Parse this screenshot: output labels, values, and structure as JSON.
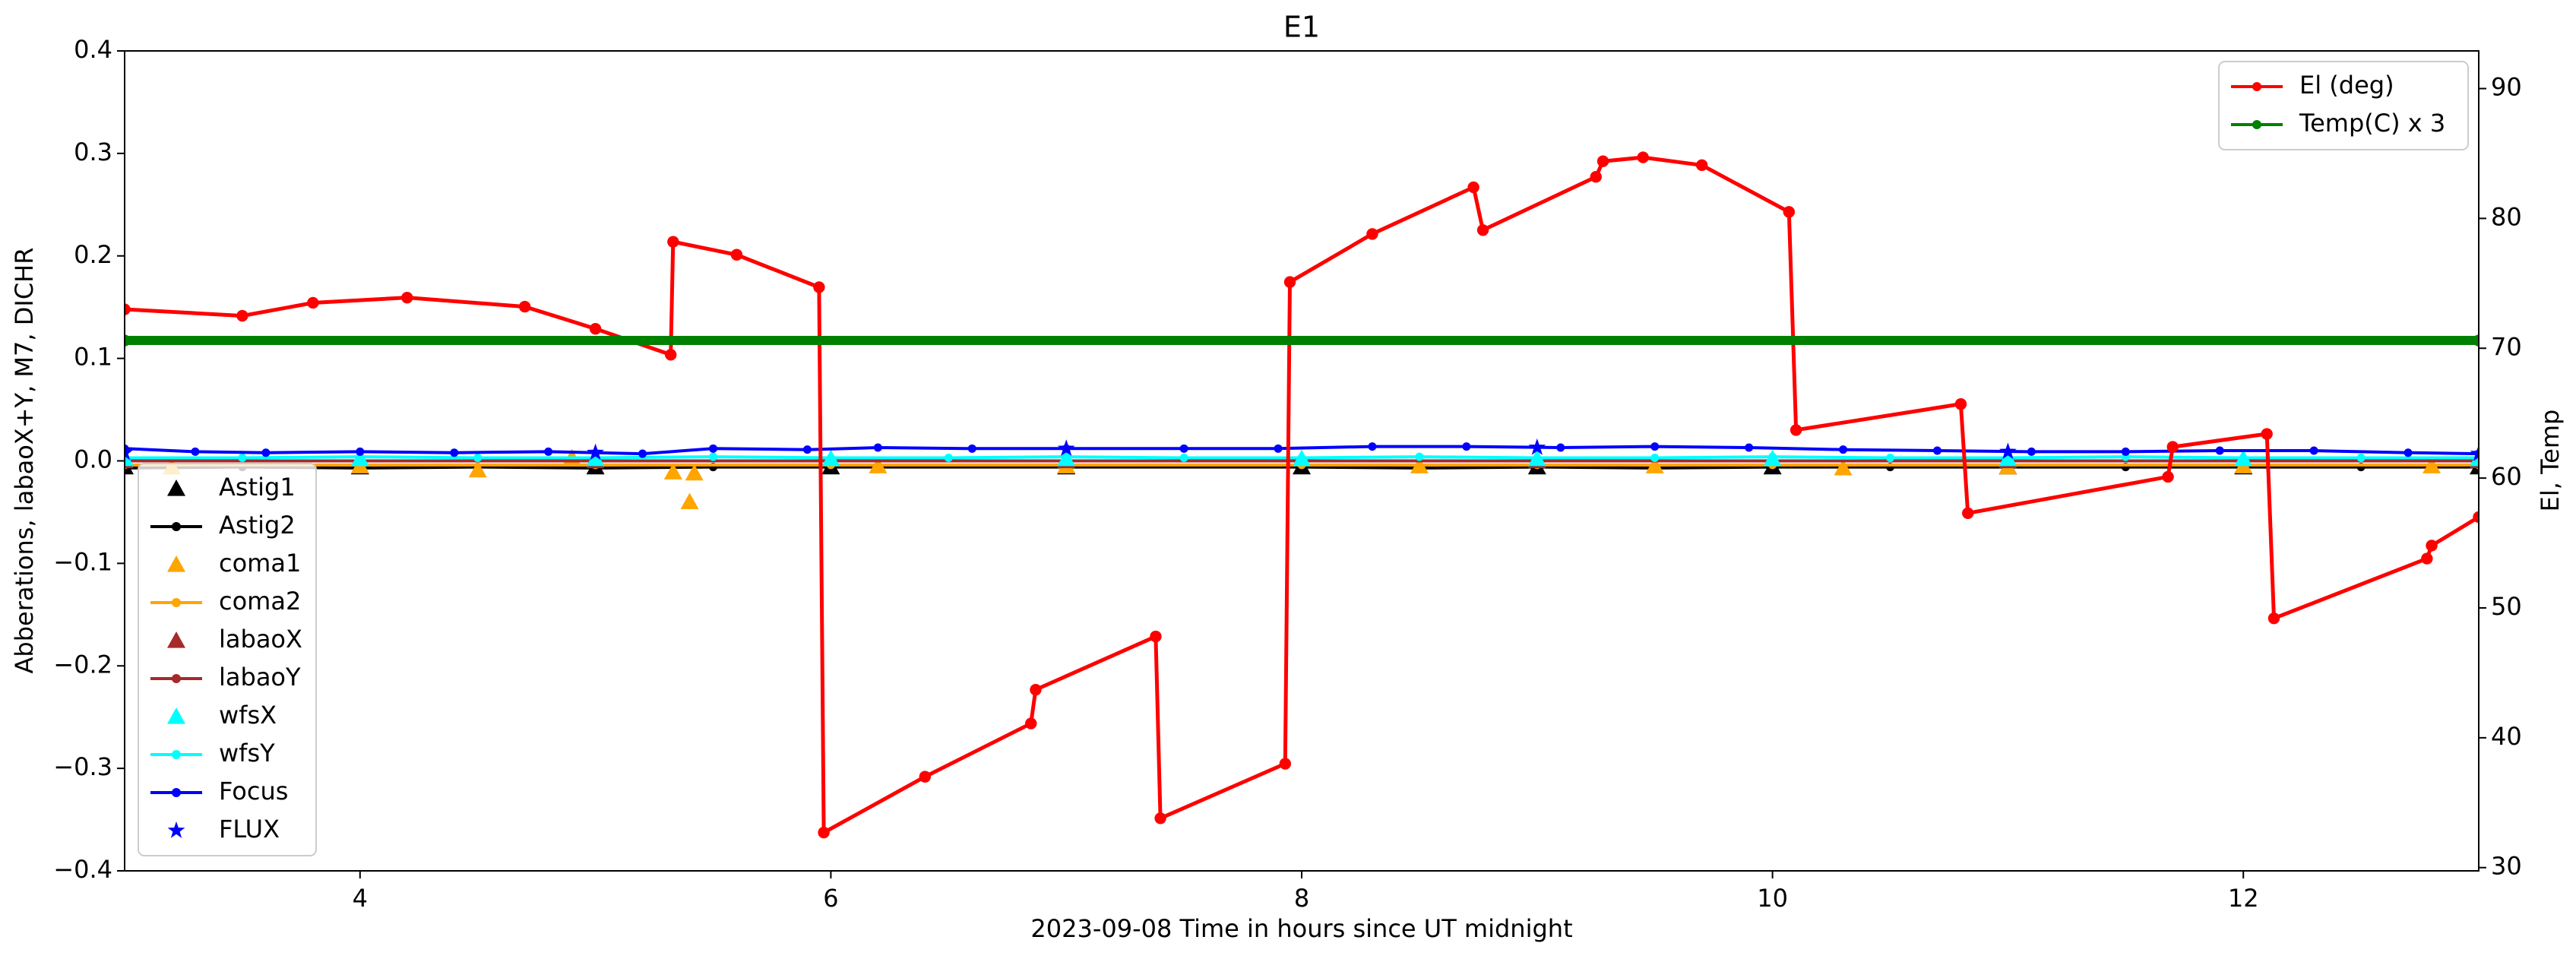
{
  "chart_data": {
    "type": "line",
    "title": "E1",
    "xlabel": "2023-09-08  Time in hours since UT midnight",
    "ylabel": "Abberations, labaoX+Y, M7, DICHR",
    "y2label": "El, Temp",
    "xlim": [
      3,
      13
    ],
    "xticks": [
      4,
      6,
      8,
      10,
      12
    ],
    "ylim": [
      -0.4,
      0.4
    ],
    "yticks": [
      {
        "value": -0.4,
        "label": "−0.4"
      },
      {
        "value": -0.3,
        "label": "−0.3"
      },
      {
        "value": -0.2,
        "label": "−0.2"
      },
      {
        "value": -0.1,
        "label": "−0.1"
      },
      {
        "value": 0,
        "label": "0.0"
      },
      0.1,
      0.2,
      0.3,
      0.4
    ],
    "y2lim": [
      29.75,
      92.9
    ],
    "y2ticks": [
      30,
      40,
      50,
      60,
      70,
      80,
      90
    ],
    "legend": "lower left",
    "legend2": "upper right",
    "series": [
      {
        "name": "Astig1",
        "color": "#000000",
        "marker": "triangle",
        "x": [
          3,
          4,
          5,
          6,
          7,
          8,
          9,
          10,
          11,
          12,
          13
        ],
        "values": [
          -0.006,
          -0.006,
          -0.006,
          -0.006,
          -0.006,
          -0.006,
          -0.006,
          -0.006,
          -0.006,
          -0.006,
          -0.006
        ]
      },
      {
        "name": "Astig2",
        "color": "#000000",
        "marker": "line",
        "x": [
          3,
          3.5,
          4,
          4.5,
          5,
          5.5,
          6,
          7,
          8,
          8.5,
          9,
          9.5,
          10,
          10.5,
          11,
          11.5,
          12,
          12.5,
          13
        ],
        "values": [
          -0.007,
          -0.006,
          -0.007,
          -0.006,
          -0.007,
          -0.006,
          -0.006,
          -0.006,
          -0.006,
          -0.007,
          -0.006,
          -0.007,
          -0.006,
          -0.006,
          -0.006,
          -0.006,
          -0.006,
          -0.006,
          -0.006
        ]
      },
      {
        "name": "coma1",
        "color": "#ffa500",
        "marker": "triangle",
        "x": [
          3.2,
          4.0,
          4.5,
          4.9,
          5.33,
          5.4,
          5.42,
          6.2,
          7.0,
          8.5,
          9.5,
          10.3,
          11.0,
          12.0,
          12.8
        ],
        "values": [
          -0.006,
          -0.005,
          -0.009,
          0.003,
          -0.011,
          -0.04,
          -0.012,
          -0.005,
          -0.005,
          -0.005,
          -0.005,
          -0.007,
          -0.006,
          -0.005,
          -0.005
        ]
      },
      {
        "name": "coma2",
        "color": "#ffa500",
        "marker": "line",
        "x": [
          3,
          4,
          5,
          6,
          7,
          8,
          9,
          10,
          11,
          12,
          13
        ],
        "values": [
          -0.004,
          -0.004,
          -0.004,
          -0.004,
          -0.004,
          -0.004,
          -0.004,
          -0.004,
          -0.004,
          -0.004,
          -0.004
        ]
      },
      {
        "name": "labaoX",
        "color": "#a52a2a",
        "marker": "triangle",
        "x": [
          3,
          5,
          7,
          9,
          11,
          13
        ],
        "values": [
          0.0,
          0.0,
          0.0,
          0.0,
          0.0,
          0.0
        ]
      },
      {
        "name": "labaoY",
        "color": "#a52a2a",
        "marker": "line",
        "x": [
          3,
          5,
          7,
          9,
          11,
          13
        ],
        "values": [
          0.0,
          0.0,
          0.0,
          0.0,
          0.0,
          0.0
        ]
      },
      {
        "name": "wfsX",
        "color": "#00ffff",
        "marker": "triangle",
        "x": [
          3,
          4,
          5,
          6,
          7,
          8,
          9,
          10,
          11,
          12,
          13
        ],
        "values": [
          0.002,
          0.002,
          0.002,
          0.002,
          0.002,
          0.002,
          0.002,
          0.002,
          0.002,
          0.002,
          0.002
        ]
      },
      {
        "name": "wfsY",
        "color": "#00ffff",
        "marker": "line",
        "x": [
          3,
          3.5,
          4,
          4.5,
          5,
          5.5,
          6,
          6.5,
          7,
          7.5,
          8,
          8.5,
          9,
          9.5,
          10,
          10.5,
          11,
          11.5,
          12,
          12.5,
          13
        ],
        "values": [
          0.003,
          0.003,
          0.004,
          0.003,
          0.003,
          0.004,
          0.003,
          0.003,
          0.004,
          0.003,
          0.003,
          0.004,
          0.003,
          0.003,
          0.004,
          0.003,
          0.003,
          0.004,
          0.003,
          0.003,
          0.003
        ]
      },
      {
        "name": "Focus",
        "color": "#0000ff",
        "marker": "line",
        "x": [
          3,
          3.3,
          3.6,
          4,
          4.4,
          4.8,
          5.2,
          5.5,
          5.9,
          6.2,
          6.6,
          7.0,
          7.5,
          7.9,
          8.3,
          8.7,
          9.1,
          9.5,
          9.9,
          10.3,
          10.7,
          11.1,
          11.5,
          11.9,
          12.3,
          12.7,
          13
        ],
        "values": [
          0.012,
          0.009,
          0.008,
          0.009,
          0.008,
          0.009,
          0.007,
          0.012,
          0.011,
          0.013,
          0.012,
          0.012,
          0.012,
          0.012,
          0.014,
          0.014,
          0.013,
          0.014,
          0.013,
          0.011,
          0.01,
          0.009,
          0.009,
          0.01,
          0.01,
          0.008,
          0.007
        ]
      },
      {
        "name": "FLUX",
        "color": "#0000ff",
        "marker": "star",
        "x": [
          3,
          5,
          7,
          9,
          11,
          13
        ],
        "values": [
          0.008,
          0.008,
          0.012,
          0.013,
          0.009,
          0.007
        ]
      },
      {
        "name": "El (deg)",
        "color": "#ff0000",
        "marker": "line",
        "axis": "y2",
        "x": [
          3.0,
          3.5,
          3.8,
          4.2,
          4.7,
          5.0,
          5.32,
          5.33,
          5.6,
          5.95,
          5.97,
          6.4,
          6.85,
          6.87,
          7.38,
          7.4,
          7.93,
          7.95,
          8.3,
          8.73,
          8.77,
          9.25,
          9.28,
          9.45,
          9.7,
          10.07,
          10.1,
          10.8,
          10.83,
          11.68,
          11.7,
          12.1,
          12.13,
          12.78,
          12.8,
          13.0
        ],
        "values": [
          73.0,
          72.5,
          73.5,
          73.9,
          73.2,
          71.5,
          69.5,
          78.2,
          77.2,
          74.7,
          32.7,
          37.0,
          41.1,
          43.7,
          47.8,
          33.8,
          38.0,
          75.1,
          78.8,
          82.4,
          79.1,
          83.2,
          84.4,
          84.7,
          84.1,
          80.5,
          63.7,
          65.7,
          57.3,
          60.1,
          62.4,
          63.4,
          49.2,
          53.8,
          54.8,
          57.0
        ]
      },
      {
        "name": "Temp(C) x 3",
        "color": "#008000",
        "marker": "line",
        "axis": "y2",
        "x": [
          3,
          13
        ],
        "values": [
          70.6,
          70.6
        ]
      }
    ]
  }
}
